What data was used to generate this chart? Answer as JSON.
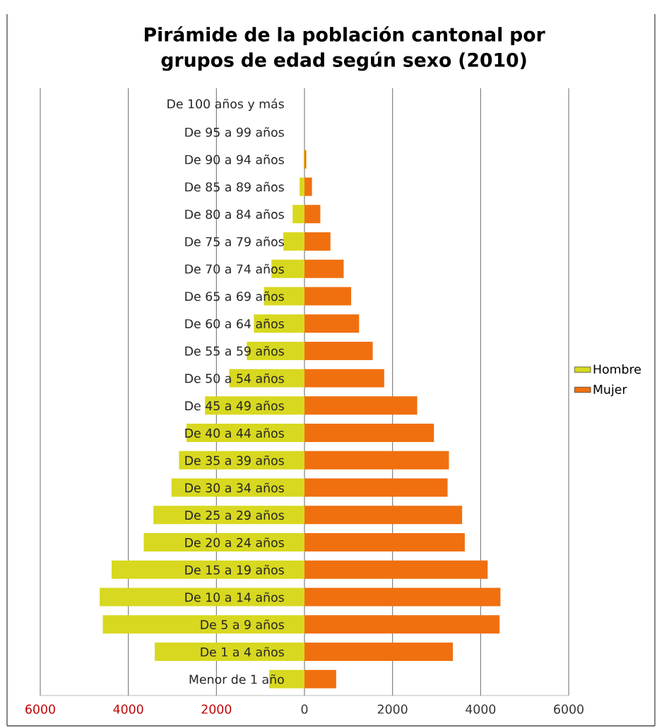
{
  "chart_data": {
    "type": "bar",
    "orientation": "horizontal",
    "title": "Pirámide de la población cantonal por grupos de edad según sexo (2010)",
    "categories": [
      "De 100 años y más",
      "De 95 a 99 años",
      "De 90 a 94 años",
      "De 85 a 89 años",
      "De 80 a 84 años",
      "De 75 a 79 años",
      "De 70 a 74 años",
      "De 65 a 69 años",
      "De 60 a 64 años",
      "De 55 a 59 años",
      "De 50 a 54 años",
      "De 45 a 49 años",
      "De 40 a 44 años",
      "De 35 a 39 años",
      "De 30 a 34 años",
      "De 25 a 29 años",
      "De 20 a 24 años",
      "De 15 a 19 años",
      "De 10 a 14 años",
      "De 5 a 9 años",
      "De 1 a 4 años",
      "Menor de 1 año"
    ],
    "series": [
      {
        "name": "Hombre",
        "color": "#d8d820",
        "values": [
          0,
          0,
          -20,
          -110,
          -270,
          -480,
          -750,
          -920,
          -1150,
          -1310,
          -1710,
          -2260,
          -2680,
          -2850,
          -3020,
          -3430,
          -3650,
          -4380,
          -4650,
          -4580,
          -3400,
          -800
        ]
      },
      {
        "name": "Mujer",
        "color": "#f07010",
        "values": [
          0,
          0,
          40,
          170,
          360,
          590,
          890,
          1060,
          1240,
          1550,
          1810,
          2560,
          2940,
          3280,
          3250,
          3580,
          3640,
          4160,
          4450,
          4430,
          3370,
          720
        ]
      }
    ],
    "xlim": [
      -6000,
      6000
    ],
    "xticks": [
      {
        "value": -6000,
        "label": "6000"
      },
      {
        "value": -4000,
        "label": "4000"
      },
      {
        "value": -2000,
        "label": "2000"
      },
      0,
      2000,
      4000,
      6000
    ],
    "stacked": true,
    "grid": "x",
    "legend": "right"
  }
}
